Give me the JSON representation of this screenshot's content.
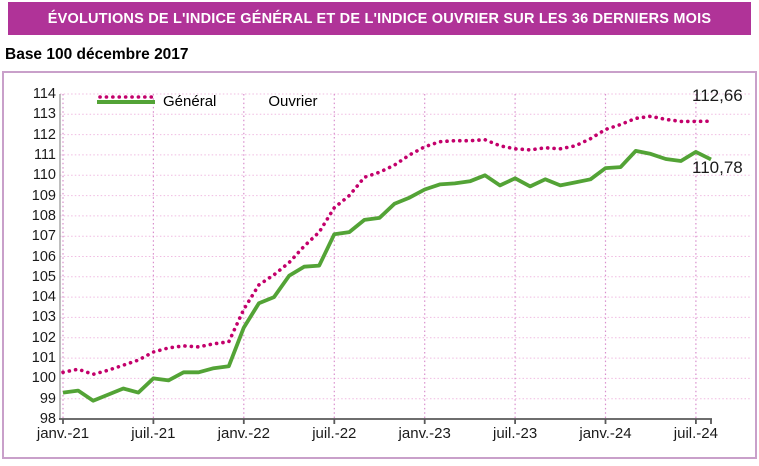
{
  "header": {
    "title": "ÉVOLUTIONS DE L'INDICE GÉNÉRAL ET DE L'INDICE OUVRIER SUR LES 36 DERNIERS MOIS"
  },
  "subtitle": "Base 100 décembre 2017",
  "colors": {
    "header_bg": "#b03398",
    "general_line": "#53a336",
    "ouvrier_line": "#c3006b",
    "grid_horizontal": "#f0bce2",
    "grid_vertical": "#d98fcd",
    "panel_border": "#c9a0ca",
    "axis": "#595959"
  },
  "chart_data": {
    "type": "line",
    "title": "ÉVOLUTIONS DE L'INDICE GÉNÉRAL ET DE L'INDICE OUVRIER SUR LES 36 DERNIERS MOIS",
    "subtitle": "Base 100 décembre 2017",
    "xlabel": "",
    "ylabel": "",
    "ylim": [
      98,
      114
    ],
    "y_step": 1,
    "grid": true,
    "legend_position": "top-left-inside",
    "n_points": 44,
    "x_tick_labels": [
      "janv.-21",
      "juil.-21",
      "janv.-22",
      "juil.-22",
      "janv.-23",
      "juil.-23",
      "janv.-24",
      "juil.-24"
    ],
    "x_tick_indices": [
      0,
      6,
      12,
      18,
      24,
      30,
      36,
      42
    ],
    "series": [
      {
        "name": "Général",
        "style": "solid",
        "color": "#53a336",
        "values": [
          99.3,
          99.4,
          98.9,
          99.2,
          99.5,
          99.3,
          100.0,
          99.9,
          100.3,
          100.3,
          100.5,
          100.6,
          102.5,
          103.7,
          104.0,
          105.05,
          105.5,
          105.55,
          107.1,
          107.2,
          107.8,
          107.9,
          108.6,
          108.9,
          109.3,
          109.55,
          109.6,
          109.7,
          110.0,
          109.5,
          109.85,
          109.45,
          109.8,
          109.5,
          109.65,
          109.8,
          110.35,
          110.4,
          111.2,
          111.05,
          110.8,
          110.7,
          111.15,
          110.78
        ]
      },
      {
        "name": "Ouvrier",
        "style": "dotted",
        "color": "#c3006b",
        "values": [
          100.3,
          100.45,
          100.2,
          100.4,
          100.65,
          100.9,
          101.3,
          101.5,
          101.6,
          101.55,
          101.7,
          101.8,
          103.4,
          104.6,
          105.1,
          105.7,
          106.5,
          107.2,
          108.4,
          109.0,
          109.9,
          110.15,
          110.5,
          111.0,
          111.4,
          111.65,
          111.7,
          111.7,
          111.75,
          111.45,
          111.3,
          111.25,
          111.35,
          111.3,
          111.45,
          111.8,
          112.25,
          112.5,
          112.8,
          112.9,
          112.75,
          112.65,
          112.65,
          112.66
        ]
      }
    ],
    "end_labels": [
      {
        "series": "Ouvrier",
        "text": "112,66"
      },
      {
        "series": "Général",
        "text": "110,78"
      }
    ]
  }
}
